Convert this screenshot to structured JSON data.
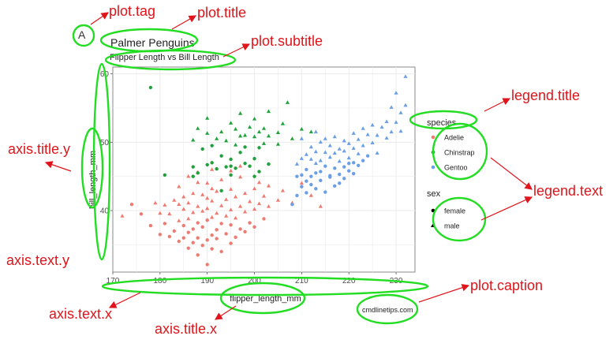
{
  "plot": {
    "tag": "A",
    "title": "Palmer Penguins",
    "subtitle": "Flipper Length vs Bill Length",
    "caption": "cmdlinetips.com"
  },
  "annotations": {
    "plot_tag": "plot.tag",
    "plot_title": "plot.title",
    "plot_subtitle": "plot.subtitle",
    "legend_title": "legend.title",
    "legend_text": "legend.text",
    "axis_title_y": "axis.title.y",
    "axis_text_y": "axis.text.y",
    "axis_text_x": "axis.text.x",
    "axis_title_x": "axis.title.x",
    "plot_caption": "plot.caption"
  },
  "colors": {
    "annotation": "#e0141a",
    "highlight": "#22dd22",
    "Adelie": "#f07a70",
    "Chinstrap": "#1ea33a",
    "Gentoo": "#6a9fe8",
    "grid": "#ebebeb",
    "panel_border": "#8a8a8a"
  },
  "chart_data": {
    "type": "scatter",
    "title": "Palmer Penguins",
    "subtitle": "Flipper Length vs Bill Length",
    "xlabel": "flipper_length_mm",
    "ylabel": "bill_length_mm",
    "xlim": [
      170,
      234
    ],
    "ylim": [
      31,
      61
    ],
    "xticks": [
      170,
      180,
      190,
      200,
      210,
      220,
      230
    ],
    "yticks": [
      40,
      50,
      60
    ],
    "grid": true,
    "legend_placement": "right",
    "legends": [
      {
        "title": "species",
        "kind": "color",
        "items": [
          "Adelie",
          "Chinstrap",
          "Gentoo"
        ]
      },
      {
        "title": "sex",
        "kind": "shape",
        "items": [
          {
            "label": "female",
            "shape": "circle"
          },
          {
            "label": "male",
            "shape": "triangle"
          }
        ]
      }
    ],
    "series": [
      {
        "name": "Adelie",
        "points": [
          [
            172,
            39.2,
            "m"
          ],
          [
            174,
            40.9,
            "f"
          ],
          [
            176,
            39.5,
            "f"
          ],
          [
            178,
            37.8,
            "f"
          ],
          [
            179,
            41.1,
            "m"
          ],
          [
            180,
            36.5,
            "f"
          ],
          [
            180,
            39.6,
            "m"
          ],
          [
            181,
            38.1,
            "f"
          ],
          [
            181,
            40.8,
            "m"
          ],
          [
            182,
            36.2,
            "f"
          ],
          [
            182,
            39.5,
            "m"
          ],
          [
            183,
            37.0,
            "f"
          ],
          [
            183,
            41.5,
            "m"
          ],
          [
            184,
            35.5,
            "f"
          ],
          [
            184,
            38.5,
            "m"
          ],
          [
            184,
            40.9,
            "m"
          ],
          [
            185,
            36.0,
            "f"
          ],
          [
            185,
            37.8,
            "f"
          ],
          [
            185,
            40.2,
            "m"
          ],
          [
            185,
            42.0,
            "m"
          ],
          [
            186,
            34.5,
            "f"
          ],
          [
            186,
            36.8,
            "f"
          ],
          [
            186,
            38.8,
            "m"
          ],
          [
            186,
            41.1,
            "m"
          ],
          [
            187,
            35.3,
            "f"
          ],
          [
            187,
            37.3,
            "f"
          ],
          [
            187,
            39.7,
            "m"
          ],
          [
            187,
            42.5,
            "m"
          ],
          [
            188,
            33.5,
            "f"
          ],
          [
            188,
            36.0,
            "f"
          ],
          [
            188,
            38.2,
            "f"
          ],
          [
            188,
            40.6,
            "m"
          ],
          [
            188,
            44.1,
            "m"
          ],
          [
            189,
            34.9,
            "f"
          ],
          [
            189,
            37.6,
            "f"
          ],
          [
            189,
            39.9,
            "m"
          ],
          [
            189,
            42.3,
            "m"
          ],
          [
            190,
            32.1,
            "f"
          ],
          [
            190,
            35.7,
            "f"
          ],
          [
            190,
            38.6,
            "f"
          ],
          [
            190,
            40.3,
            "m"
          ],
          [
            190,
            41.8,
            "m"
          ],
          [
            190,
            44.0,
            "m"
          ],
          [
            191,
            34.4,
            "f"
          ],
          [
            191,
            36.4,
            "f"
          ],
          [
            191,
            39.0,
            "m"
          ],
          [
            191,
            41.4,
            "m"
          ],
          [
            191,
            43.2,
            "m"
          ],
          [
            192,
            35.9,
            "f"
          ],
          [
            192,
            37.2,
            "f"
          ],
          [
            192,
            39.6,
            "m"
          ],
          [
            192,
            42.8,
            "m"
          ],
          [
            193,
            34.0,
            "f"
          ],
          [
            193,
            38.1,
            "f"
          ],
          [
            193,
            40.7,
            "m"
          ],
          [
            193,
            44.5,
            "m"
          ],
          [
            194,
            36.6,
            "f"
          ],
          [
            194,
            39.2,
            "m"
          ],
          [
            194,
            41.6,
            "m"
          ],
          [
            195,
            35.2,
            "f"
          ],
          [
            195,
            37.9,
            "f"
          ],
          [
            195,
            40.1,
            "m"
          ],
          [
            195,
            43.1,
            "m"
          ],
          [
            196,
            36.1,
            "f"
          ],
          [
            196,
            38.9,
            "m"
          ],
          [
            196,
            42.0,
            "m"
          ],
          [
            197,
            37.3,
            "f"
          ],
          [
            197,
            40.6,
            "m"
          ],
          [
            197,
            44.9,
            "m"
          ],
          [
            198,
            36.9,
            "f"
          ],
          [
            198,
            39.8,
            "m"
          ],
          [
            198,
            42.5,
            "m"
          ],
          [
            199,
            38.2,
            "f"
          ],
          [
            199,
            41.3,
            "m"
          ],
          [
            200,
            37.6,
            "f"
          ],
          [
            200,
            40.2,
            "m"
          ],
          [
            200,
            43.2,
            "m"
          ],
          [
            201,
            41.0,
            "m"
          ],
          [
            201,
            44.1,
            "m"
          ],
          [
            202,
            38.8,
            "f"
          ],
          [
            202,
            42.1,
            "m"
          ],
          [
            203,
            40.6,
            "m"
          ],
          [
            203,
            43.6,
            "m"
          ],
          [
            205,
            41.5,
            "m"
          ],
          [
            206,
            42.9,
            "m"
          ],
          [
            208,
            41.1,
            "m"
          ],
          [
            210,
            44.0,
            "m"
          ],
          [
            212,
            42.2,
            "m"
          ],
          [
            214,
            40.6,
            "m"
          ],
          [
            188,
            45.6,
            "m"
          ],
          [
            191,
            46.0,
            "m"
          ],
          [
            195,
            45.8,
            "m"
          ],
          [
            184,
            43.5,
            "m"
          ],
          [
            186,
            45.0,
            "m"
          ],
          [
            197,
            46.5,
            "m"
          ]
        ]
      },
      {
        "name": "Chinstrap",
        "points": [
          [
            178,
            58.0,
            "f"
          ],
          [
            181,
            45.2,
            "f"
          ],
          [
            187,
            46.4,
            "f"
          ],
          [
            187,
            50.3,
            "m"
          ],
          [
            188,
            52.0,
            "m"
          ],
          [
            188,
            45.5,
            "f"
          ],
          [
            189,
            49.0,
            "f"
          ],
          [
            190,
            51.3,
            "m"
          ],
          [
            190,
            46.7,
            "f"
          ],
          [
            190,
            53.5,
            "m"
          ],
          [
            191,
            49.5,
            "f"
          ],
          [
            191,
            47.0,
            "f"
          ],
          [
            192,
            50.5,
            "m"
          ],
          [
            192,
            46.1,
            "f"
          ],
          [
            193,
            51.5,
            "m"
          ],
          [
            193,
            48.0,
            "f"
          ],
          [
            194,
            46.4,
            "f"
          ],
          [
            194,
            50.2,
            "m"
          ],
          [
            195,
            52.8,
            "m"
          ],
          [
            195,
            47.5,
            "f"
          ],
          [
            195,
            45.2,
            "f"
          ],
          [
            196,
            49.6,
            "m"
          ],
          [
            196,
            51.9,
            "m"
          ],
          [
            196,
            46.2,
            "f"
          ],
          [
            197,
            50.9,
            "m"
          ],
          [
            197,
            48.5,
            "f"
          ],
          [
            197,
            54.2,
            "m"
          ],
          [
            198,
            51.0,
            "m"
          ],
          [
            198,
            46.9,
            "f"
          ],
          [
            198,
            49.3,
            "f"
          ],
          [
            199,
            52.2,
            "m"
          ],
          [
            199,
            46.5,
            "f"
          ],
          [
            200,
            50.8,
            "m"
          ],
          [
            200,
            47.6,
            "f"
          ],
          [
            200,
            53.4,
            "m"
          ],
          [
            201,
            51.5,
            "m"
          ],
          [
            201,
            49.2,
            "f"
          ],
          [
            201,
            45.7,
            "f"
          ],
          [
            202,
            52.0,
            "m"
          ],
          [
            202,
            49.8,
            "m"
          ],
          [
            203,
            50.9,
            "m"
          ],
          [
            203,
            46.8,
            "f"
          ],
          [
            203,
            54.5,
            "m"
          ],
          [
            205,
            51.4,
            "m"
          ],
          [
            205,
            49.7,
            "m"
          ],
          [
            206,
            52.7,
            "m"
          ],
          [
            207,
            55.8,
            "m"
          ],
          [
            208,
            50.5,
            "m"
          ],
          [
            210,
            51.9,
            "m"
          ],
          [
            212,
            51.5,
            "m"
          ],
          [
            193,
            42.9,
            "f"
          ],
          [
            195,
            46.5,
            "f"
          ],
          [
            200,
            45.0,
            "f"
          ],
          [
            187,
            45.0,
            "f"
          ]
        ]
      },
      {
        "name": "Gentoo",
        "points": [
          [
            208,
            40.9,
            "f"
          ],
          [
            209,
            46.8,
            "m"
          ],
          [
            209,
            42.2,
            "f"
          ],
          [
            210,
            43.5,
            "f"
          ],
          [
            210,
            47.6,
            "m"
          ],
          [
            210,
            45.2,
            "f"
          ],
          [
            211,
            44.3,
            "f"
          ],
          [
            211,
            48.2,
            "m"
          ],
          [
            211,
            46.0,
            "f"
          ],
          [
            211,
            42.6,
            "f"
          ],
          [
            212,
            45.0,
            "f"
          ],
          [
            212,
            47.5,
            "m"
          ],
          [
            212,
            43.8,
            "f"
          ],
          [
            212,
            49.3,
            "m"
          ],
          [
            213,
            45.5,
            "f"
          ],
          [
            213,
            46.9,
            "m"
          ],
          [
            213,
            43.2,
            "f"
          ],
          [
            213,
            48.6,
            "m"
          ],
          [
            214,
            44.4,
            "f"
          ],
          [
            214,
            47.3,
            "m"
          ],
          [
            214,
            45.7,
            "f"
          ],
          [
            214,
            50.0,
            "m"
          ],
          [
            215,
            42.7,
            "f"
          ],
          [
            215,
            46.5,
            "f"
          ],
          [
            215,
            48.5,
            "m"
          ],
          [
            215,
            50.5,
            "m"
          ],
          [
            216,
            44.9,
            "f"
          ],
          [
            216,
            47.8,
            "m"
          ],
          [
            216,
            45.1,
            "f"
          ],
          [
            216,
            49.5,
            "m"
          ],
          [
            217,
            46.2,
            "f"
          ],
          [
            217,
            48.4,
            "m"
          ],
          [
            217,
            43.6,
            "f"
          ],
          [
            217,
            50.8,
            "m"
          ],
          [
            218,
            45.3,
            "f"
          ],
          [
            218,
            47.2,
            "m"
          ],
          [
            218,
            49.0,
            "m"
          ],
          [
            218,
            44.0,
            "f"
          ],
          [
            219,
            46.4,
            "f"
          ],
          [
            219,
            48.7,
            "m"
          ],
          [
            219,
            50.2,
            "m"
          ],
          [
            219,
            44.7,
            "f"
          ],
          [
            220,
            45.8,
            "f"
          ],
          [
            220,
            47.7,
            "m"
          ],
          [
            220,
            49.8,
            "m"
          ],
          [
            220,
            46.9,
            "f"
          ],
          [
            221,
            47.0,
            "f"
          ],
          [
            221,
            49.1,
            "m"
          ],
          [
            221,
            45.4,
            "f"
          ],
          [
            221,
            51.3,
            "m"
          ],
          [
            222,
            46.6,
            "f"
          ],
          [
            222,
            48.3,
            "m"
          ],
          [
            222,
            50.4,
            "m"
          ],
          [
            223,
            47.3,
            "f"
          ],
          [
            223,
            49.5,
            "m"
          ],
          [
            223,
            52.0,
            "m"
          ],
          [
            224,
            48.0,
            "f"
          ],
          [
            224,
            51.1,
            "m"
          ],
          [
            225,
            49.9,
            "m"
          ],
          [
            225,
            52.5,
            "m"
          ],
          [
            226,
            51.0,
            "m"
          ],
          [
            226,
            48.4,
            "m"
          ],
          [
            227,
            52.2,
            "m"
          ],
          [
            228,
            50.6,
            "m"
          ],
          [
            228,
            53.0,
            "m"
          ],
          [
            229,
            51.5,
            "m"
          ],
          [
            229,
            55.1,
            "m"
          ],
          [
            230,
            52.9,
            "m"
          ],
          [
            230,
            57.2,
            "m"
          ],
          [
            231,
            54.3,
            "m"
          ],
          [
            231,
            51.6,
            "m"
          ],
          [
            232,
            55.4,
            "m"
          ],
          [
            232,
            59.6,
            "m"
          ],
          [
            210,
            50.5,
            "m"
          ],
          [
            213,
            51.5,
            "m"
          ],
          [
            209,
            45.0,
            "f"
          ]
        ]
      }
    ]
  }
}
